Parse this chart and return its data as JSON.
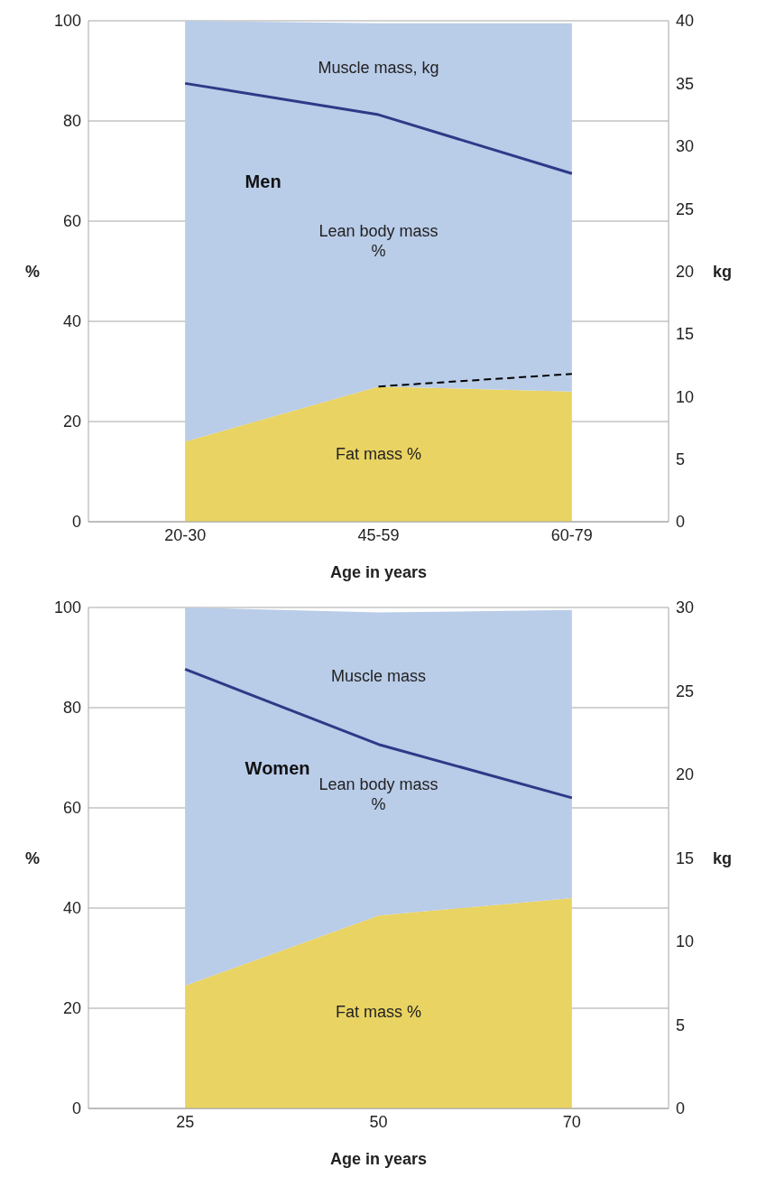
{
  "chart_data": [
    {
      "type": "area",
      "stacked": true,
      "categories": [
        "20-30",
        "45-59",
        "60-79"
      ],
      "xlabel": "Age in years",
      "ylabel": "%",
      "y2label": "kg",
      "ylim": [
        0,
        100
      ],
      "yticks": [
        0,
        20,
        40,
        60,
        80,
        100
      ],
      "y2lim": [
        0,
        40
      ],
      "y2ticks": [
        0,
        5,
        10,
        15,
        20,
        25,
        30,
        35,
        40
      ],
      "grid": "y",
      "marker": "none",
      "annotations": [
        "Men"
      ],
      "series": [
        {
          "name": "Fat mass %",
          "color": "#e9d362",
          "values": [
            16,
            27,
            26
          ]
        },
        {
          "name": "Lean body mass %",
          "color": "#b9cce8",
          "values": [
            84,
            72.5,
            73.5
          ]
        },
        {
          "name": "Muscle mass, kg",
          "type": "line",
          "axis": "y2",
          "color": "#2e3a87",
          "values": [
            35,
            32.5,
            27.8
          ]
        },
        {
          "type": "line",
          "line_style": "dashed",
          "color": "#000000",
          "values": [
            null,
            27,
            29.5
          ]
        }
      ]
    },
    {
      "type": "area",
      "stacked": true,
      "categories": [
        "25",
        "50",
        "70"
      ],
      "xlabel": "Age in years",
      "ylabel": "%",
      "y2label": "kg",
      "ylim": [
        0,
        100
      ],
      "yticks": [
        0,
        20,
        40,
        60,
        80,
        100
      ],
      "y2lim": [
        0,
        30
      ],
      "y2ticks": [
        0,
        5,
        10,
        15,
        20,
        25,
        30
      ],
      "grid": "y",
      "marker": "none",
      "annotations": [
        "Women"
      ],
      "series": [
        {
          "name": "Fat mass %",
          "color": "#e9d362",
          "values": [
            24.5,
            38.5,
            42
          ]
        },
        {
          "name": "Lean body mass %",
          "color": "#b9cce8",
          "values": [
            75.5,
            60.5,
            57.5
          ]
        },
        {
          "name": "Muscle mass",
          "type": "line",
          "axis": "y2",
          "color": "#2e3a87",
          "values": [
            26.3,
            21.8,
            18.6
          ]
        }
      ]
    }
  ]
}
